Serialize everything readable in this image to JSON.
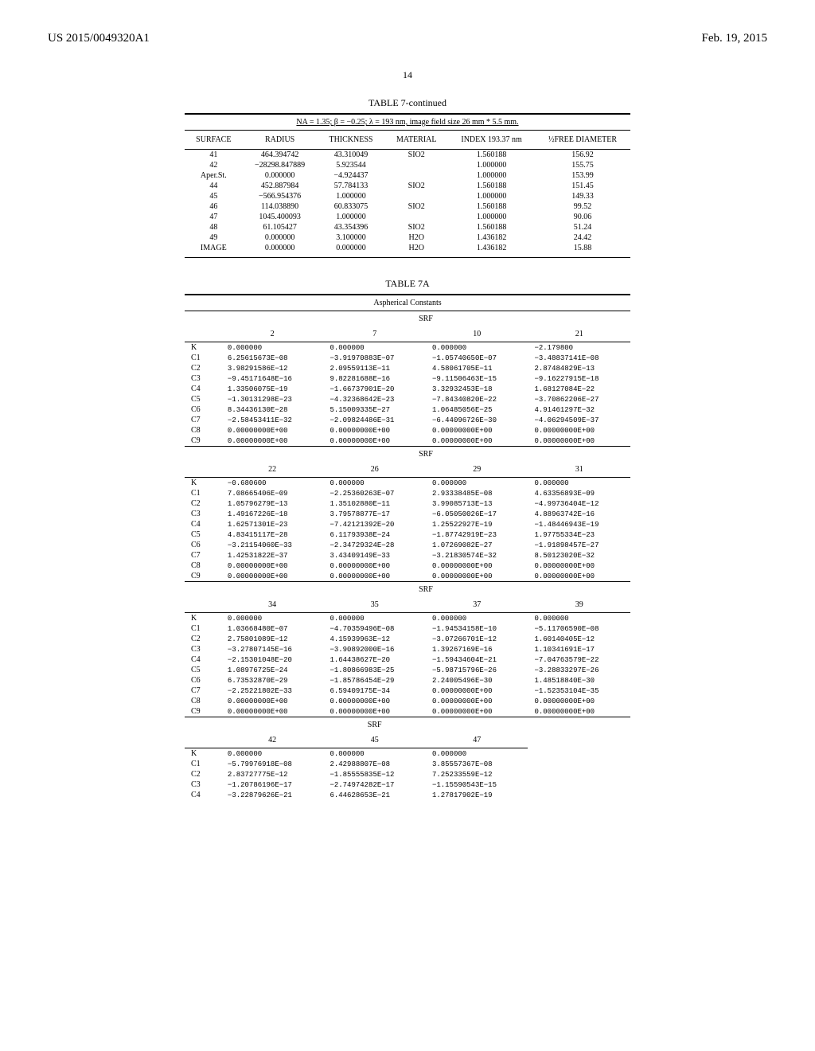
{
  "header": {
    "left": "US 2015/0049320A1",
    "right": "Feb. 19, 2015",
    "page": "14"
  },
  "t7": {
    "title": "TABLE 7-continued",
    "sub": "NA = 1.35; β = −0.25; λ = 193 nm, image field size 26 mm * 5.5 mm.",
    "cols": [
      "SURFACE",
      "RADIUS",
      "THICKNESS",
      "MATERIAL",
      "INDEX 193.37 nm",
      "½FREE DIAMETER"
    ],
    "rows": [
      [
        "41",
        "464.394742",
        "43.310049",
        "SIO2",
        "1.560188",
        "156.92"
      ],
      [
        "42",
        "−28298.847889",
        "5.923544",
        "",
        "1.000000",
        "155.75"
      ],
      [
        "Aper.St.",
        "0.000000",
        "−4.924437",
        "",
        "1.000000",
        "153.99"
      ],
      [
        "44",
        "452.887984",
        "57.784133",
        "SIO2",
        "1.560188",
        "151.45"
      ],
      [
        "45",
        "−566.954376",
        "1.000000",
        "",
        "1.000000",
        "149.33"
      ],
      [
        "46",
        "114.038890",
        "60.833075",
        "SIO2",
        "1.560188",
        "99.52"
      ],
      [
        "47",
        "1045.400093",
        "1.000000",
        "",
        "1.000000",
        "90.06"
      ],
      [
        "48",
        "61.105427",
        "43.354396",
        "SIO2",
        "1.560188",
        "51.24"
      ],
      [
        "49",
        "0.000000",
        "3.100000",
        "H2O",
        "1.436182",
        "24.42"
      ],
      [
        "IMAGE",
        "0.000000",
        "0.000000",
        "H2O",
        "1.436182",
        "15.88"
      ]
    ]
  },
  "t7a": {
    "title": "TABLE 7A",
    "sub": "Aspherical Constants",
    "srf": "SRF",
    "rowlabels": [
      "K",
      "C1",
      "C2",
      "C3",
      "C4",
      "C5",
      "C6",
      "C7",
      "C8",
      "C9"
    ],
    "blocks": [
      {
        "cols": [
          "2",
          "7",
          "10",
          "21"
        ],
        "data": [
          [
            "0.000000",
            "0.000000",
            "0.000000",
            "−2.179800"
          ],
          [
            "6.25615673E−08",
            "−3.91970883E−07",
            "−1.05740650E−07",
            "−3.48837141E−08"
          ],
          [
            "3.98291586E−12",
            "2.09559113E−11",
            "4.58061705E−11",
            "2.87484829E−13"
          ],
          [
            "−9.45171648E−16",
            "9.82281688E−16",
            "−9.11506463E−15",
            "−9.16227915E−18"
          ],
          [
            "1.33506075E−19",
            "−1.66737901E−20",
            "3.32932453E−18",
            "1.68127084E−22"
          ],
          [
            "−1.30131298E−23",
            "−4.32368642E−23",
            "−7.84340820E−22",
            "−3.70862206E−27"
          ],
          [
            "8.34436130E−28",
            "5.15009335E−27",
            "1.06485056E−25",
            "4.91461297E−32"
          ],
          [
            "−2.58453411E−32",
            "−2.09824486E−31",
            "−6.44096726E−30",
            "−4.06294509E−37"
          ],
          [
            "0.00000000E+00",
            "0.00000000E+00",
            "0.00000000E+00",
            "0.00000000E+00"
          ],
          [
            "0.00000000E+00",
            "0.00000000E+00",
            "0.00000000E+00",
            "0.00000000E+00"
          ]
        ]
      },
      {
        "cols": [
          "22",
          "26",
          "29",
          "31"
        ],
        "data": [
          [
            "−0.680600",
            "0.000000",
            "0.000000",
            "0.000000"
          ],
          [
            "7.08665406E−09",
            "−2.25360263E−07",
            "2.93338485E−08",
            "4.63356893E−09"
          ],
          [
            "1.05796279E−13",
            "1.35102880E−11",
            "3.99085713E−13",
            "−4.99736404E−12"
          ],
          [
            "1.49167226E−18",
            "3.79578877E−17",
            "−6.05050026E−17",
            "4.88963742E−16"
          ],
          [
            "1.62571301E−23",
            "−7.42121392E−20",
            "1.25522927E−19",
            "−1.48446943E−19"
          ],
          [
            "4.83415117E−28",
            "6.11793938E−24",
            "−1.87742919E−23",
            "1.97755334E−23"
          ],
          [
            "−3.21154060E−33",
            "−2.34729324E−28",
            "1.07269082E−27",
            "−1.91898457E−27"
          ],
          [
            "1.42531822E−37",
            "3.43409149E−33",
            "−3.21830574E−32",
            "8.50123020E−32"
          ],
          [
            "0.00000000E+00",
            "0.00000000E+00",
            "0.00000000E+00",
            "0.00000000E+00"
          ],
          [
            "0.00000000E+00",
            "0.00000000E+00",
            "0.00000000E+00",
            "0.00000000E+00"
          ]
        ]
      },
      {
        "cols": [
          "34",
          "35",
          "37",
          "39"
        ],
        "data": [
          [
            "0.000000",
            "0.000000",
            "0.000000",
            "0.000000"
          ],
          [
            "1.03668480E−07",
            "−4.70359496E−08",
            "−1.94534158E−10",
            "−5.11706590E−08"
          ],
          [
            "2.75801089E−12",
            "4.15939963E−12",
            "−3.07266701E−12",
            "1.60140405E−12"
          ],
          [
            "−3.27807145E−16",
            "−3.90892000E−16",
            "1.39267169E−16",
            "1.10341691E−17"
          ],
          [
            "−2.15301048E−20",
            "1.64438627E−20",
            "−1.59434604E−21",
            "−7.04763579E−22"
          ],
          [
            "1.08976725E−24",
            "−1.80866983E−25",
            "−5.98715796E−26",
            "−3.28833297E−26"
          ],
          [
            "6.73532870E−29",
            "−1.85786454E−29",
            "2.24005496E−30",
            "1.48518840E−30"
          ],
          [
            "−2.25221802E−33",
            "6.59409175E−34",
            "0.00000000E+00",
            "−1.52353104E−35"
          ],
          [
            "0.00000000E+00",
            "0.00000000E+00",
            "0.00000000E+00",
            "0.00000000E+00"
          ],
          [
            "0.00000000E+00",
            "0.00000000E+00",
            "0.00000000E+00",
            "0.00000000E+00"
          ]
        ]
      },
      {
        "cols": [
          "42",
          "45",
          "47"
        ],
        "data": [
          [
            "0.000000",
            "0.000000",
            "0.000000"
          ],
          [
            "−5.79976918E−08",
            "2.42988807E−08",
            "3.85557367E−08"
          ],
          [
            "2.83727775E−12",
            "−1.85555835E−12",
            "7.25233559E−12"
          ],
          [
            "−1.20786196E−17",
            "−2.74974282E−17",
            "−1.15590543E−15"
          ],
          [
            "−3.22879626E−21",
            "6.44628653E−21",
            "1.27817902E−19"
          ]
        ],
        "partial": true
      }
    ]
  }
}
